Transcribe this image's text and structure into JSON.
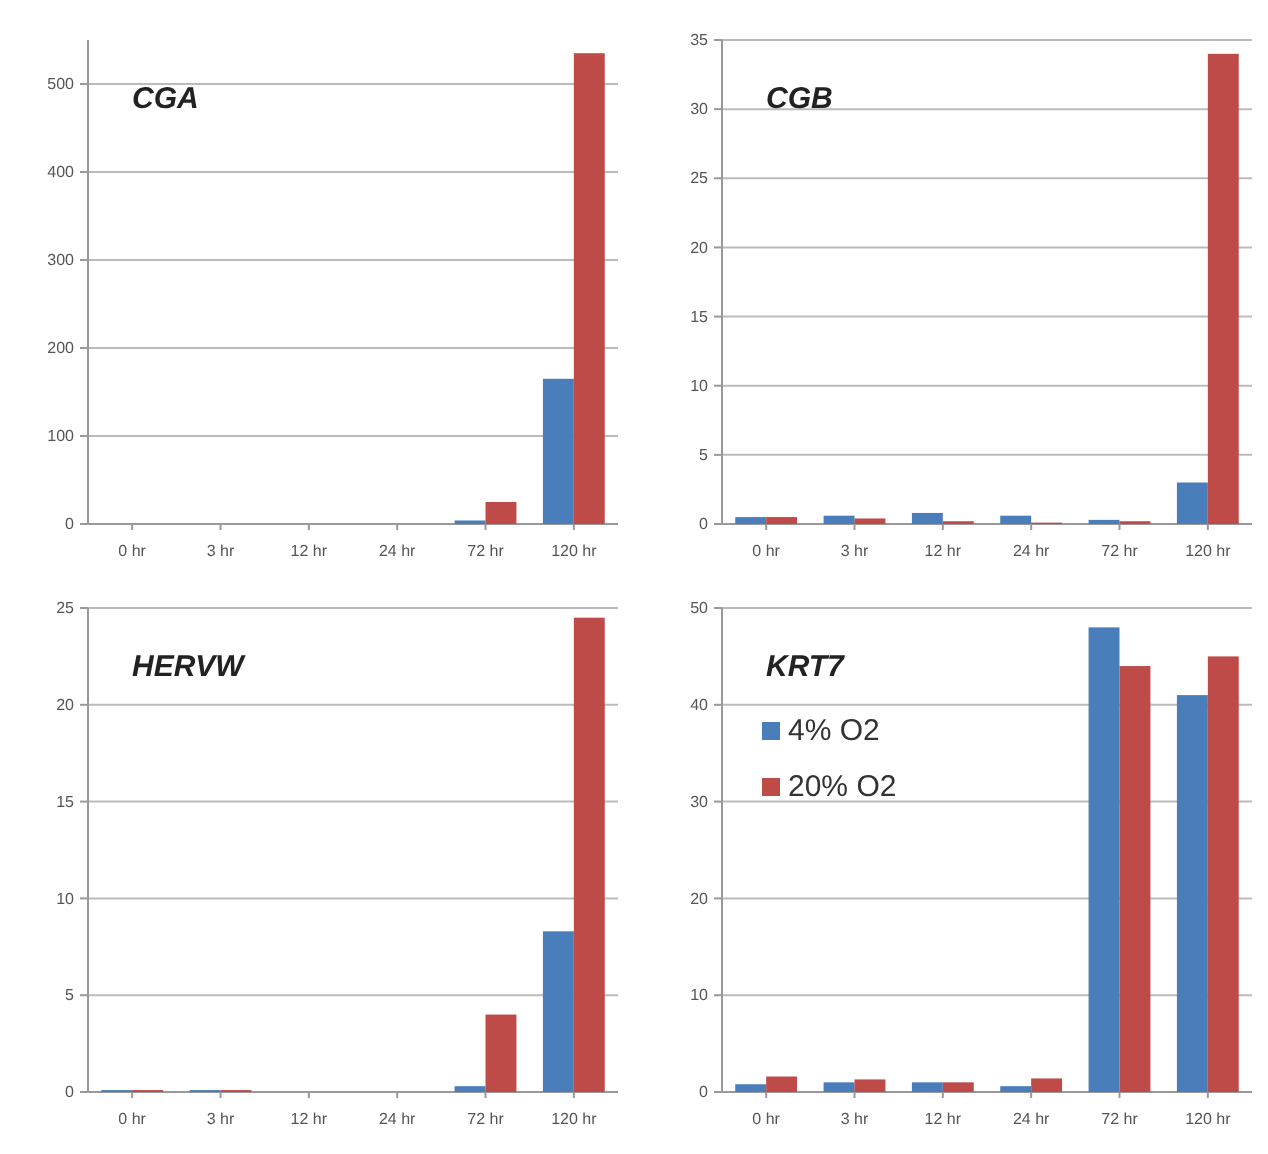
{
  "chart_data": [
    {
      "type": "bar",
      "title": "CGA",
      "categories": [
        "0 hr",
        "3 hr",
        "12 hr",
        "24 hr",
        "72 hr",
        "120 hr"
      ],
      "series": [
        {
          "color": "#4a7ebb",
          "values": [
            0,
            0,
            0,
            0,
            4,
            165
          ]
        },
        {
          "color": "#be4b48",
          "values": [
            0,
            0,
            0,
            0,
            25,
            535
          ]
        }
      ],
      "ylim": [
        0,
        550
      ],
      "yticks": [
        0,
        100,
        200,
        300,
        400,
        500
      ],
      "grid": "y",
      "legend": false
    },
    {
      "type": "bar",
      "title": "CGB",
      "categories": [
        "0 hr",
        "3 hr",
        "12 hr",
        "24 hr",
        "72 hr",
        "120 hr"
      ],
      "series": [
        {
          "color": "#4a7ebb",
          "values": [
            0.5,
            0.6,
            0.8,
            0.6,
            0.3,
            3
          ]
        },
        {
          "color": "#be4b48",
          "values": [
            0.5,
            0.4,
            0.2,
            0.1,
            0.2,
            34
          ]
        }
      ],
      "ylim": [
        0,
        35
      ],
      "yticks": [
        0,
        5,
        10,
        15,
        20,
        25,
        30,
        35
      ],
      "grid": "y",
      "legend": false
    },
    {
      "type": "bar",
      "title": "HERVW",
      "categories": [
        "0 hr",
        "3 hr",
        "12 hr",
        "24 hr",
        "72 hr",
        "120 hr"
      ],
      "series": [
        {
          "color": "#4a7ebb",
          "values": [
            0.1,
            0.1,
            0,
            0,
            0.3,
            8.3
          ]
        },
        {
          "color": "#be4b48",
          "values": [
            0.1,
            0.1,
            0,
            0,
            4,
            24.5
          ]
        }
      ],
      "ylim": [
        0,
        25
      ],
      "yticks": [
        0,
        5,
        10,
        15,
        20,
        25
      ],
      "grid": "y",
      "legend": false
    },
    {
      "type": "bar",
      "title": "KRT7",
      "categories": [
        "0 hr",
        "3 hr",
        "12 hr",
        "24 hr",
        "72 hr",
        "120 hr"
      ],
      "series": [
        {
          "name": "4% O2",
          "color": "#4a7ebb",
          "values": [
            0.8,
            1,
            1,
            0.6,
            48,
            41
          ]
        },
        {
          "name": "20% O2",
          "color": "#be4b48",
          "values": [
            1.6,
            1.3,
            1,
            1.4,
            44,
            45
          ]
        }
      ],
      "ylim": [
        0,
        50
      ],
      "yticks": [
        0,
        10,
        20,
        30,
        40,
        50
      ],
      "grid": "y",
      "legend": "top left"
    }
  ]
}
